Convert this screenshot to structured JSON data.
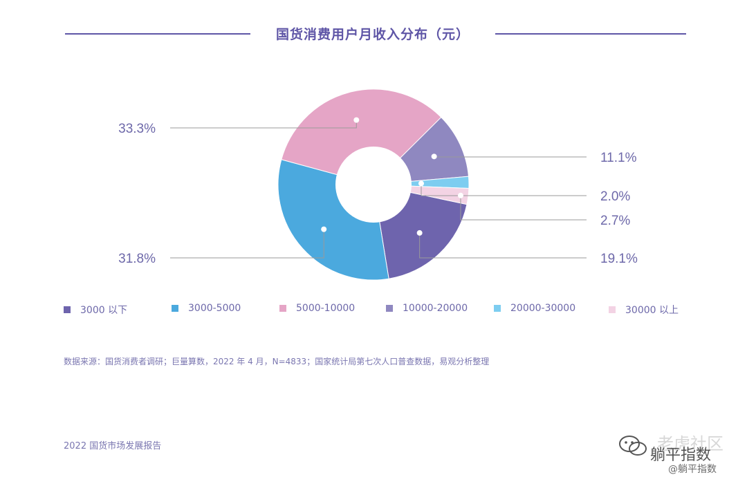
{
  "header": {
    "title": "国货消费用户月收入分布（元）"
  },
  "chart_data": {
    "type": "pie",
    "title": "国货消费用户月收入分布（元）",
    "donut": true,
    "categories": [
      "3000 以下",
      "3000-5000",
      "5000-10000",
      "10000-20000",
      "20000-30000",
      "30000 以上"
    ],
    "values": [
      19.1,
      31.8,
      33.3,
      11.1,
      2.0,
      2.7
    ],
    "value_labels": [
      "19.1%",
      "31.8%",
      "33.3%",
      "11.1%",
      "2.0%",
      "2.7%"
    ],
    "colors": [
      "#6e64ad",
      "#4ba9de",
      "#e5a5c6",
      "#8f88c0",
      "#7dcdf0",
      "#f3d3e4"
    ],
    "legend_position": "bottom"
  },
  "source": {
    "text": "数据来源：国货消费者调研；巨量算数，2022 年 4 月，N=4833；国家统计局第七次人口普查数据，易观分析整理"
  },
  "footer": {
    "text": "2022 国货市场发展报告"
  },
  "watermarks": {
    "w1": "老虎社区",
    "w2": "躺平指数",
    "w3": "@躺平指数"
  }
}
